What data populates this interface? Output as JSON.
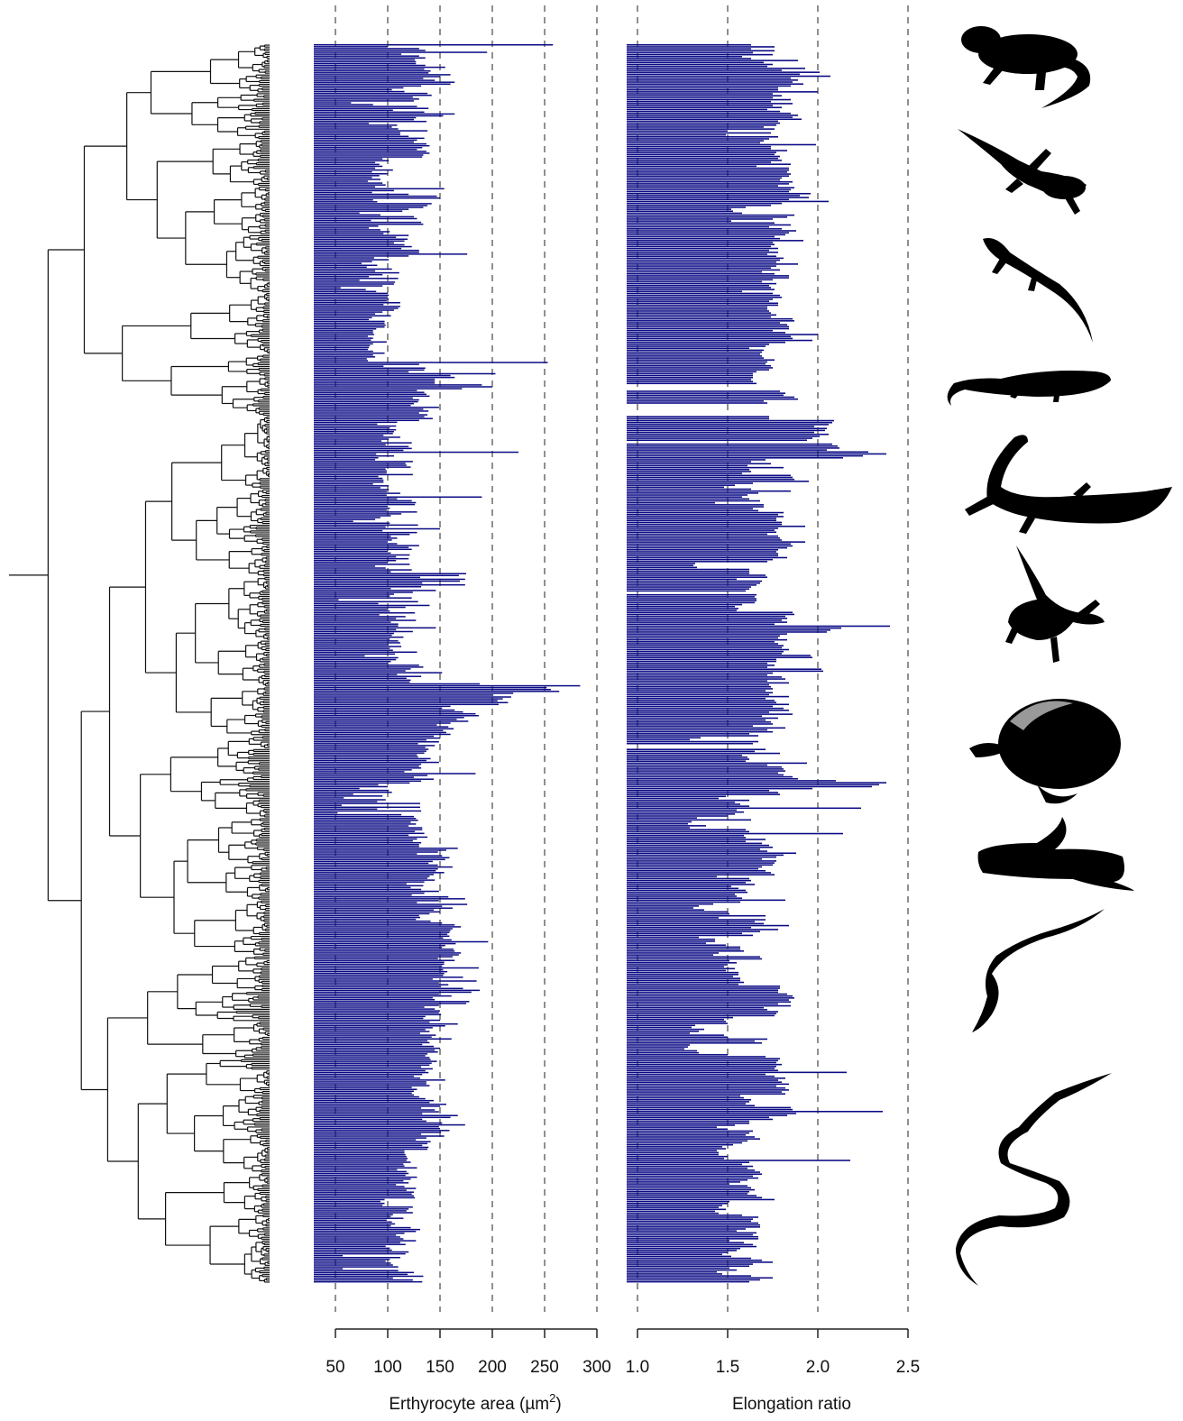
{
  "colors": {
    "bar": "#0a0a85",
    "axis": "#222222",
    "grid": "#555555",
    "tree": "#111111",
    "silhouette": "#000000"
  },
  "chart_data": [
    {
      "type": "bar",
      "orientation": "horizontal",
      "xlabel": "Erthyrocyte area (µm",
      "xlabel_sup": "2",
      "xlabel_tail": ")",
      "xlim": [
        40,
        300
      ],
      "ticks": [
        50,
        100,
        150,
        200,
        250,
        300
      ],
      "tick_labels": [
        "50",
        "100",
        "150",
        "200",
        "250",
        "300"
      ],
      "grid": "dashed vertical at ticks",
      "values": [
        258,
        100,
        130,
        136,
        195,
        113,
        130,
        136,
        126,
        127,
        127,
        136,
        155,
        135,
        141,
        139,
        160,
        150,
        134,
        145,
        164,
        160,
        132,
        115,
        104,
        116,
        138,
        142,
        124,
        130,
        125,
        65,
        86,
        128,
        139,
        105,
        135,
        164,
        153,
        127,
        125,
        137,
        82,
        109,
        104,
        110,
        138,
        112,
        112,
        120,
        135,
        128,
        125,
        137,
        140,
        133,
        128,
        137,
        140,
        134,
        133,
        95,
        101,
        88,
        92,
        95,
        88,
        105,
        85,
        100,
        92,
        85,
        93,
        81,
        95,
        98,
        88,
        154,
        106,
        85,
        120,
        147,
        150,
        86,
        90,
        142,
        138,
        134,
        120,
        114,
        73,
        93,
        125,
        128,
        84,
        132,
        134,
        91,
        82,
        93,
        102,
        96,
        120,
        108,
        119,
        116,
        106,
        116,
        123,
        113,
        130,
        130,
        176,
        120,
        87,
        101,
        85,
        75,
        90,
        80,
        104,
        88,
        111,
        95,
        82,
        110,
        73,
        107,
        106,
        95,
        55,
        79,
        89,
        100,
        101,
        100,
        101,
        99,
        112,
        96,
        112,
        110,
        106,
        95,
        88,
        103,
        85,
        82,
        97,
        97,
        98,
        97,
        89,
        86,
        86,
        87,
        81,
        86,
        84,
        99,
        86,
        83,
        82,
        81,
        86,
        97,
        86,
        88,
        80,
        81,
        253,
        130,
        96,
        136,
        135,
        120,
        203,
        160,
        164,
        145,
        145,
        145,
        190,
        200,
        171,
        128,
        135,
        137,
        140,
        124,
        130,
        129,
        125,
        122,
        149,
        134,
        139,
        130,
        138,
        135,
        143,
        130,
        109,
        90,
        108,
        102,
        108,
        106,
        105,
        96,
        112,
        101,
        94,
        123,
        98,
        120,
        123,
        115,
        225,
        89,
        106,
        91,
        88,
        124,
        117,
        118,
        122,
        98,
        99,
        99,
        124,
        91,
        95,
        96,
        96,
        86,
        101,
        93,
        101,
        99,
        112,
        99,
        190,
        109,
        123,
        127,
        126,
        100,
        102,
        99,
        128,
        113,
        103,
        93,
        88,
        67,
        102,
        129,
        98,
        150,
        95,
        128,
        121,
        103,
        109,
        104,
        100,
        109,
        130,
        120,
        123,
        100,
        103,
        121,
        108,
        120,
        108,
        100,
        121,
        88,
        98,
        123,
        103,
        175,
        168,
        131,
        174,
        169,
        133,
        174,
        132,
        103,
        146,
        124,
        106,
        102,
        123,
        53,
        129,
        91,
        140,
        117,
        100,
        102,
        126,
        92,
        117,
        108,
        127,
        103,
        110,
        110,
        146,
        108,
        124,
        106,
        104,
        115,
        102,
        110,
        112,
        101,
        113,
        102,
        105,
        128,
        107,
        78,
        110,
        108,
        103,
        100,
        130,
        134,
        122,
        117,
        152,
        109,
        132,
        118,
        122,
        121,
        188,
        284,
        252,
        256,
        264,
        220,
        201,
        218,
        210,
        205,
        215,
        206,
        160,
        152,
        164,
        172,
        184,
        187,
        173,
        166,
        177,
        160,
        147,
        158,
        163,
        153,
        156,
        160,
        144,
        150,
        137,
        149,
        129,
        145,
        136,
        139,
        137,
        135,
        128,
        129,
        141,
        137,
        149,
        132,
        130,
        132,
        123,
        116,
        184,
        138,
        125,
        144,
        132,
        121,
        91,
        100,
        73,
        101,
        104,
        67,
        95,
        58,
        98,
        90,
        131,
        56,
        131,
        90,
        132,
        52,
        113,
        125,
        127,
        129,
        122,
        127,
        120,
        133,
        133,
        126,
        135,
        120,
        138,
        128,
        124,
        132,
        130,
        130,
        167,
        156,
        148,
        128,
        152,
        159,
        155,
        143,
        139,
        148,
        162,
        148,
        146,
        154,
        144,
        140,
        138,
        145,
        135,
        118,
        134,
        122,
        132,
        149,
        135,
        123,
        158,
        174,
        149,
        128,
        176,
        152,
        162,
        144,
        150,
        140,
        130,
        131,
        127,
        141,
        152,
        164,
        170,
        162,
        160,
        159,
        157,
        159,
        153,
        161,
        196,
        165,
        155,
        152,
        163,
        164,
        170,
        168,
        162,
        148,
        164,
        154,
        154,
        152,
        187,
        153,
        157,
        154,
        153,
        172,
        143,
        185,
        149,
        158,
        151,
        172,
        188,
        180,
        149,
        161,
        143,
        145,
        178,
        175,
        149,
        135,
        145,
        150,
        149,
        151,
        136,
        134,
        150,
        140,
        167,
        155,
        143,
        136,
        140,
        131,
        146,
        142,
        161,
        138,
        140,
        133,
        144,
        150,
        145,
        148,
        138,
        136,
        140,
        141,
        147,
        142,
        140,
        132,
        143,
        136,
        139,
        133,
        125,
        131,
        155,
        137,
        137,
        140,
        123,
        128,
        125,
        123,
        125,
        130,
        136,
        144,
        140,
        156,
        150,
        132,
        145,
        149,
        133,
        167,
        160,
        133,
        137,
        152,
        174,
        149,
        150,
        159,
        151,
        132,
        154,
        137,
        127,
        141,
        138,
        133,
        139,
        138,
        116,
        116,
        117,
        118,
        119,
        118,
        122,
        115,
        116,
        128,
        109,
        118,
        120,
        117,
        128,
        122,
        115,
        120,
        108,
        116,
        127,
        118,
        125,
        123,
        125,
        126,
        97,
        93,
        97,
        95,
        124,
        120,
        118,
        124,
        105,
        103,
        115,
        99,
        104,
        107,
        103,
        122,
        131,
        127,
        116,
        108,
        112,
        115,
        127,
        112,
        117,
        98,
        102,
        104,
        120,
        117,
        57,
        112,
        102,
        98,
        103,
        105,
        110,
        57,
        110,
        125,
        119,
        134,
        105,
        124,
        133
      ]
    },
    {
      "type": "bar",
      "orientation": "horizontal",
      "xlabel": "Elongation ratio",
      "xlim": [
        0.94,
        2.5
      ],
      "ticks": [
        1.0,
        1.5,
        2.0,
        2.5
      ],
      "tick_labels": [
        "1.0",
        "1.5",
        "2.0",
        "2.5"
      ],
      "grid": "dashed vertical at ticks",
      "values": [
        1.63,
        1.76,
        1.63,
        1.76,
        1.64,
        1.75,
        1.58,
        1.63,
        1.89,
        1.7,
        1.75,
        1.72,
        1.93,
        1.8,
        2.01,
        1.9,
        2.07,
        1.85,
        1.89,
        1.86,
        1.92,
        1.85,
        1.78,
        1.78,
        2.0,
        1.75,
        1.8,
        1.75,
        1.85,
        1.74,
        1.86,
        1.75,
        1.8,
        1.72,
        1.79,
        1.85,
        1.89,
        1.86,
        1.91,
        1.78,
        1.79,
        1.77,
        1.7,
        1.76,
        1.5,
        1.74,
        1.49,
        1.78,
        1.73,
        1.7,
        1.68,
        1.99,
        1.74,
        1.74,
        1.83,
        1.77,
        1.76,
        1.79,
        1.78,
        1.8,
        1.74,
        1.85,
        1.66,
        1.84,
        1.84,
        1.83,
        1.85,
        1.84,
        1.8,
        1.79,
        1.86,
        1.84,
        1.78,
        1.87,
        1.85,
        1.84,
        1.96,
        1.9,
        1.95,
        1.84,
        2.06,
        1.8,
        1.74,
        1.6,
        1.52,
        1.53,
        1.58,
        1.87,
        1.83,
        1.75,
        1.52,
        1.76,
        1.85,
        1.73,
        1.8,
        1.88,
        1.84,
        1.82,
        1.76,
        1.79,
        1.92,
        1.75,
        1.76,
        1.74,
        1.78,
        1.73,
        1.78,
        1.72,
        1.77,
        1.81,
        1.79,
        1.77,
        1.89,
        1.77,
        1.74,
        1.79,
        1.69,
        1.76,
        1.84,
        1.84,
        1.75,
        1.69,
        1.77,
        1.73,
        1.74,
        1.76,
        1.58,
        1.75,
        1.79,
        1.8,
        1.75,
        1.73,
        1.78,
        1.78,
        1.72,
        1.72,
        1.73,
        1.74,
        1.77,
        1.74,
        1.86,
        1.87,
        1.79,
        1.83,
        1.84,
        1.84,
        1.75,
        1.82,
        2.0,
        1.85,
        1.86,
        1.97,
        1.82,
        1.73,
        1.71,
        1.62,
        1.7,
        1.69,
        1.68,
        1.69,
        1.7,
        1.76,
        1.72,
        1.71,
        1.74,
        1.75,
        1.73,
        1.66,
        1.64,
        1.64,
        1.64,
        1.63,
        1.64,
        1.66,
        null,
        null,
        null,
        1.79,
        1.82,
        1.81,
        1.87,
        1.89,
        1.7,
        1.72,
        null,
        null,
        null,
        null,
        null,
        null,
        1.73,
        1.73,
        2.09,
        2.08,
        2.06,
        1.98,
        2.05,
        2.04,
        1.98,
        2.06,
        2.01,
        1.97,
        1.94,
        null,
        2.08,
        2.11,
        2.12,
        2.05,
        2.28,
        2.38,
        2.25,
        2.14,
        1.71,
        1.63,
        1.74,
        1.61,
        1.81,
        1.62,
        1.63,
        1.58,
        1.85,
        1.86,
        1.87,
        1.95,
        1.64,
        1.54,
        1.48,
        1.63,
        1.85,
        1.67,
        1.61,
        1.58,
        1.62,
        1.68,
        1.43,
        1.7,
        1.7,
        1.64,
        1.67,
        1.81,
        1.78,
        1.81,
        1.77,
        1.77,
        1.8,
        1.8,
        1.93,
        1.78,
        1.76,
        1.77,
        1.72,
        1.78,
        1.79,
        1.8,
        1.93,
        1.85,
        1.86,
        1.83,
        1.78,
        1.77,
        1.78,
        1.78,
        1.83,
        1.75,
        1.72,
        1.32,
        1.31,
        1.33,
        1.62,
        1.62,
        1.62,
        1.71,
        1.72,
        1.55,
        1.69,
        1.68,
        1.66,
        1.63,
        1.62,
        1.6,
        null,
        1.66,
        1.65,
        1.66,
        1.66,
        1.65,
        1.58,
        1.54,
        1.56,
        1.55,
        1.86,
        1.87,
        1.82,
        1.83,
        1.8,
        1.83,
        1.76,
        2.4,
        2.13,
        2.07,
        2.05,
        1.83,
        1.79,
        1.78,
        1.83,
        1.76,
        1.78,
        1.81,
        1.8,
        1.84,
        1.81,
        1.8,
        1.96,
        1.97,
        1.77,
        1.77,
        1.72,
        1.76,
        1.72,
        2.02,
        2.03,
        1.75,
        1.72,
        1.8,
        1.82,
        1.72,
        1.84,
        1.73,
        1.74,
        1.75,
        1.71,
        1.75,
        1.73,
        1.84,
        1.71,
        1.76,
        1.77,
        1.84,
        1.75,
        1.81,
        1.84,
        1.73,
        1.86,
        1.69,
        1.78,
        1.71,
        1.74,
        1.75,
        1.64,
        1.82,
        1.72,
        1.75,
        1.62,
        1.67,
        1.35,
        1.29,
        1.67,
        1.64,
        null,
        null,
        1.71,
        1.65,
        1.79,
        1.58,
        1.61,
        1.62,
        1.6,
        1.94,
        1.72,
        1.8,
        1.81,
        1.82,
        1.78,
        1.81,
        1.86,
        1.89,
        2.1,
        2.38,
        2.34,
        2.3,
        1.97,
        1.73,
        1.78,
        1.79,
        1.49,
        1.45,
        1.62,
        1.54,
        1.57,
        1.62,
        2.24,
        1.55,
        1.59,
        1.54,
        1.5,
        1.33,
        1.63,
        1.3,
        1.28,
        1.38,
        1.29,
        1.6,
        1.62,
        2.14,
        1.59,
        1.6,
        1.71,
        1.6,
        1.69,
        1.73,
        1.75,
        1.68,
        1.72,
        1.88,
        1.81,
        1.77,
        1.69,
        1.77,
        1.76,
        1.75,
        1.69,
        1.67,
        1.71,
        1.74,
        1.76,
        1.44,
        1.62,
        1.63,
        1.6,
        1.65,
        1.52,
        1.56,
        1.6,
        1.61,
        1.54,
        1.55,
        1.58,
        1.82,
        1.57,
        1.42,
        1.34,
        1.31,
        1.37,
        1.5,
        1.51,
        1.71,
        1.45,
        1.71,
        1.65,
        1.7,
        1.84,
        1.63,
        1.78,
        1.68,
        1.58,
        1.64,
        1.34,
        1.43,
        1.43,
        1.38,
        1.49,
        1.57,
        1.57,
        1.59,
        1.45,
        1.42,
        1.68,
        1.69,
        1.51,
        1.55,
        1.5,
        1.48,
        1.54,
        1.49,
        1.56,
        1.56,
        1.53,
        1.57,
        1.57,
        1.59,
        1.56,
        1.79,
        1.79,
        1.78,
        1.78,
        1.83,
        1.86,
        1.87,
        1.84,
        1.85,
        1.78,
        1.85,
        1.7,
        1.72,
        1.78,
        1.77,
        1.76,
        1.53,
        1.48,
        1.49,
        1.5,
        1.32,
        1.3,
        1.37,
        1.34,
        1.29,
        1.48,
        1.5,
        1.72,
        1.65,
        1.69,
        1.29,
        1.28,
        1.26,
        1.33,
        1.34,
        1.5,
        1.71,
        1.79,
        1.78,
        1.77,
        1.8,
        1.77,
        1.76,
        1.78,
        2.16,
        1.71,
        1.76,
        1.82,
        1.78,
        1.8,
        1.84,
        1.77,
        1.82,
        1.84,
        1.8,
        1.82,
        1.57,
        1.59,
        1.63,
        1.62,
        1.6,
        1.65,
        1.85,
        1.86,
        2.36,
        1.88,
        1.83,
        1.73,
        1.75,
        1.62,
        1.62,
        1.54,
        1.44,
        1.5,
        1.64,
        1.62,
        1.6,
        1.65,
        1.68,
        1.61,
        1.58,
        1.53,
        1.47,
        1.49,
        1.44,
        1.45,
        1.45,
        1.5,
        1.48,
        2.18,
        1.62,
        1.58,
        1.64,
        1.61,
        1.65,
        1.68,
        1.69,
        1.64,
        1.67,
        1.61,
        1.57,
        1.51,
        1.61,
        1.63,
        1.65,
        1.62,
        1.61,
        1.66,
        1.69,
        1.76,
        1.51,
        1.5,
        1.47,
        1.45,
        1.49,
        1.43,
        1.45,
        1.58,
        1.67,
        1.64,
        1.63,
        1.67,
        1.68,
        1.68,
        1.6,
        1.55,
        1.66,
        1.64,
        1.67,
        1.67,
        1.51,
        1.59,
        1.64,
        1.66,
        1.57,
        1.55,
        1.5,
        1.47,
        1.52,
        1.63,
        1.69,
        1.75,
        1.64,
        1.62,
        1.51,
        1.55,
        1.44,
        1.47,
        1.63,
        1.75,
        1.68,
        1.62
      ]
    }
  ],
  "silhouettes": [
    "tuatara-icon",
    "gecko-icon",
    "skink-icon",
    "lacertid-icon",
    "monitor-lizard-icon",
    "iguanian-icon",
    "python-icon",
    "boa-icon",
    "slender-snake-icon",
    "colubrid-snake-icon"
  ]
}
